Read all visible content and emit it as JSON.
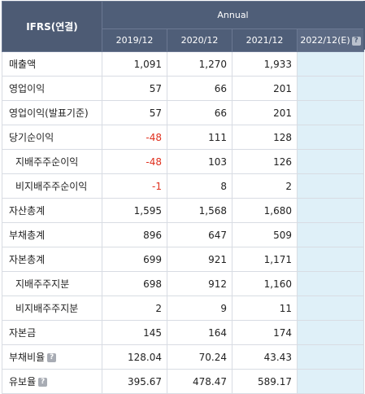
{
  "header": {
    "corner": "IFRS(연결)",
    "group": "Annual",
    "periods": [
      "2019/12",
      "2020/12",
      "2021/12",
      "2022/12(E)"
    ],
    "help_icon": "?"
  },
  "rows": [
    {
      "label": "매출액",
      "values": [
        "1,091",
        "1,270",
        "1,933",
        ""
      ]
    },
    {
      "label": "영업이익",
      "values": [
        "57",
        "66",
        "201",
        ""
      ]
    },
    {
      "label": "영업이익(발표기준)",
      "values": [
        "57",
        "66",
        "201",
        ""
      ]
    },
    {
      "label": "당기순이익",
      "values": [
        "-48",
        "111",
        "128",
        ""
      ]
    },
    {
      "label": "지배주주순이익",
      "values": [
        "-48",
        "103",
        "126",
        ""
      ]
    },
    {
      "label": "비지배주주순이익",
      "values": [
        "-1",
        "8",
        "2",
        ""
      ]
    },
    {
      "label": "자산총계",
      "values": [
        "1,595",
        "1,568",
        "1,680",
        ""
      ]
    },
    {
      "label": "부채총계",
      "values": [
        "896",
        "647",
        "509",
        ""
      ]
    },
    {
      "label": "자본총계",
      "values": [
        "699",
        "921",
        "1,171",
        ""
      ]
    },
    {
      "label": "지배주주지분",
      "values": [
        "698",
        "912",
        "1,160",
        ""
      ]
    },
    {
      "label": "비지배주주지분",
      "values": [
        "2",
        "9",
        "11",
        ""
      ]
    },
    {
      "label": "자본금",
      "values": [
        "145",
        "164",
        "174",
        ""
      ]
    },
    {
      "label": "부채비율",
      "values": [
        "128.04",
        "70.24",
        "43.43",
        ""
      ]
    },
    {
      "label": "유보율",
      "values": [
        "395.67",
        "478.47",
        "589.17",
        ""
      ]
    }
  ],
  "colors": {
    "header_bg": "#4f5e78",
    "negative": "#e0301e",
    "estimate_bg": "#dff0f8"
  }
}
